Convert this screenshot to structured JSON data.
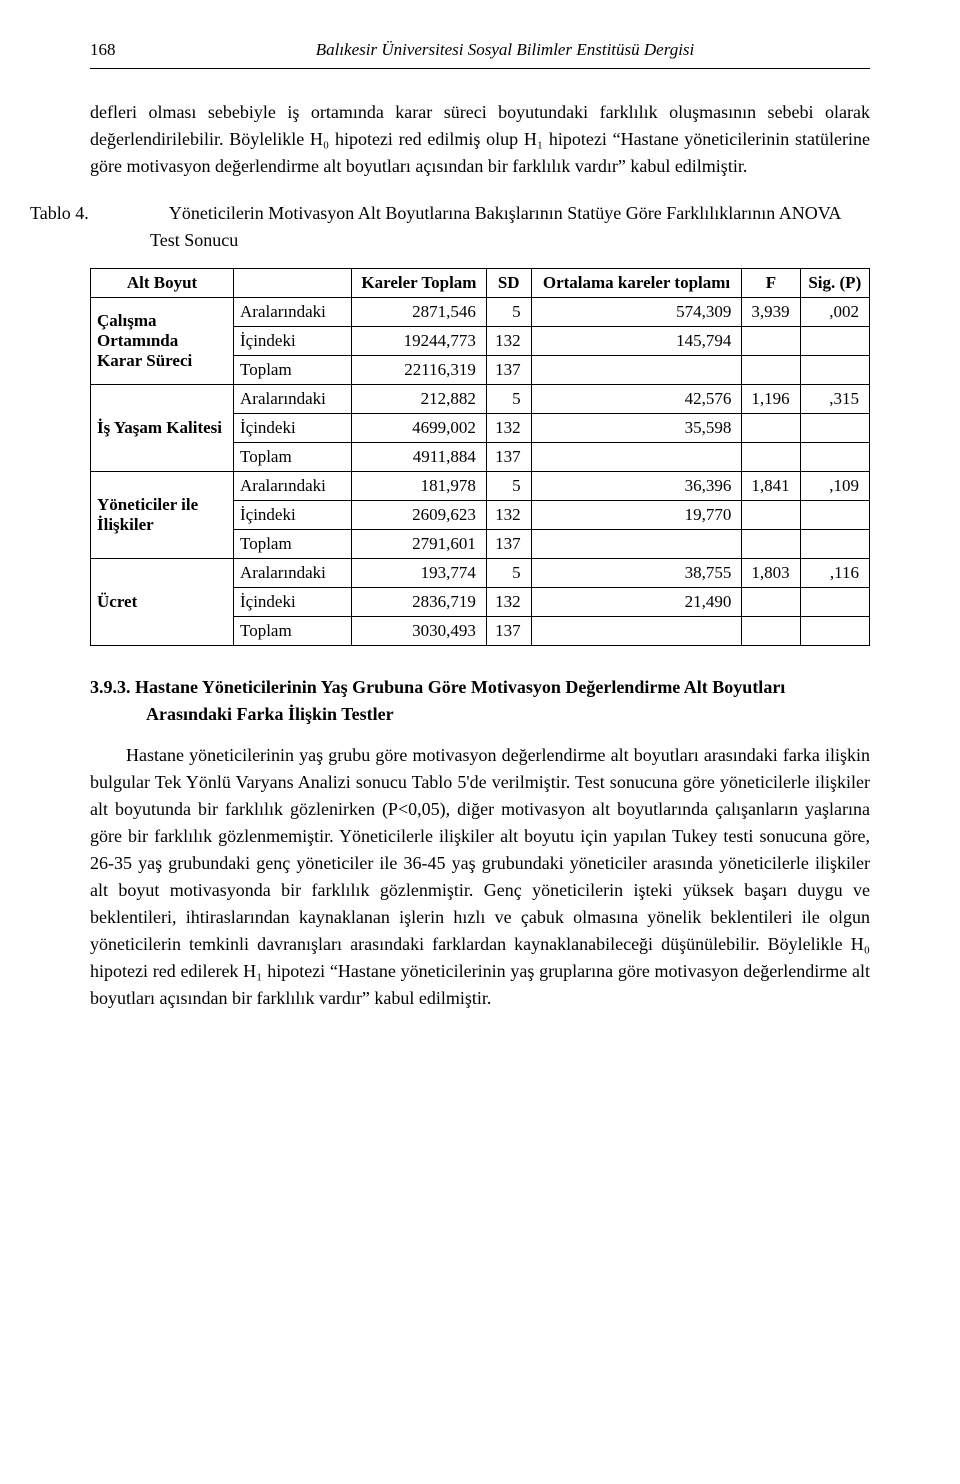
{
  "header": {
    "page_number": "168",
    "running_title": "Balıkesir Üniversitesi Sosyal Bilimler Enstitüsü Dergisi"
  },
  "para1": "defleri olması sebebiyle iş ortamında karar süreci boyutundaki farklılık oluşmasının sebebi olarak değerlendirilebilir. Böylelikle H₀ hipotezi red edilmiş olup H₁ hipotezi “Hastane yöneticilerinin statülerine göre motivasyon değerlendirme alt boyutları açısından bir farklılık vardır” kabul edilmiştir.",
  "table_caption": {
    "label": "Tablo 4.",
    "text": "Yöneticilerin Motivasyon Alt Boyutlarına Bakışlarının Statüye Göre Farklılıklarının ANOVA Test Sonucu"
  },
  "table": {
    "columns": {
      "alt_boyut": "Alt Boyut",
      "kareler_toplam": "Kareler Toplam",
      "sd": "SD",
      "ort_kareler": "Ortalama kareler toplamı",
      "f": "F",
      "sig": "Sig. (P)"
    },
    "groups": [
      {
        "name": "Çalışma Ortamında Karar Süreci",
        "rows": [
          {
            "src": "Aralarındaki",
            "kt": "2871,546",
            "sd": "5",
            "okt": "574,309",
            "f": "3,939",
            "p": ",002"
          },
          {
            "src": "İçindeki",
            "kt": "19244,773",
            "sd": "132",
            "okt": "145,794",
            "f": "",
            "p": ""
          },
          {
            "src": "Toplam",
            "kt": "22116,319",
            "sd": "137",
            "okt": "",
            "f": "",
            "p": ""
          }
        ]
      },
      {
        "name": "İş Yaşam Kalitesi",
        "rows": [
          {
            "src": "Aralarındaki",
            "kt": "212,882",
            "sd": "5",
            "okt": "42,576",
            "f": "1,196",
            "p": ",315"
          },
          {
            "src": "İçindeki",
            "kt": "4699,002",
            "sd": "132",
            "okt": "35,598",
            "f": "",
            "p": ""
          },
          {
            "src": "Toplam",
            "kt": "4911,884",
            "sd": "137",
            "okt": "",
            "f": "",
            "p": ""
          }
        ]
      },
      {
        "name": "Yöneticiler ile İlişkiler",
        "rows": [
          {
            "src": "Aralarındaki",
            "kt": "181,978",
            "sd": "5",
            "okt": "36,396",
            "f": "1,841",
            "p": ",109"
          },
          {
            "src": "İçindeki",
            "kt": "2609,623",
            "sd": "132",
            "okt": "19,770",
            "f": "",
            "p": ""
          },
          {
            "src": "Toplam",
            "kt": "2791,601",
            "sd": "137",
            "okt": "",
            "f": "",
            "p": ""
          }
        ]
      },
      {
        "name": "Ücret",
        "rows": [
          {
            "src": "Aralarındaki",
            "kt": "193,774",
            "sd": "5",
            "okt": "38,755",
            "f": "1,803",
            "p": ",116"
          },
          {
            "src": "İçindeki",
            "kt": "2836,719",
            "sd": "132",
            "okt": "21,490",
            "f": "",
            "p": ""
          },
          {
            "src": "Toplam",
            "kt": "3030,493",
            "sd": "137",
            "okt": "",
            "f": "",
            "p": ""
          }
        ]
      }
    ]
  },
  "section_heading": {
    "number": "3.9.3.",
    "title": "Hastane Yöneticilerinin Yaş Grubuna Göre Motivasyon Değerlendirme Alt Boyutları Arasındaki Farka İlişkin Testler"
  },
  "para2": "Hastane yöneticilerinin yaş grubu göre motivasyon değerlendirme alt boyutları arasındaki farka ilişkin bulgular Tek Yönlü Varyans Analizi sonucu Tablo 5'de verilmiştir. Test sonucuna göre yöneticilerle ilişkiler alt boyutunda bir farklılık gözlenirken (P<0,05), diğer motivasyon alt boyutlarında çalışanların yaşlarına göre bir farklılık gözlenmemiştir. Yöneticilerle ilişkiler alt boyutu için yapılan Tukey testi sonucuna göre, 26-35 yaş grubundaki genç yöneticiler ile 36-45 yaş grubundaki yöneticiler arasında yöneticilerle ilişkiler alt boyut motivasyonda bir farklılık gözlenmiştir. Genç yöneticilerin işteki yüksek başarı duygu ve beklentileri, ihtiraslarından kaynaklanan işlerin hızlı ve çabuk olmasına yönelik beklentileri ile olgun yöneticilerin temkinli davranışları arasındaki farklardan kaynaklanabileceği düşünülebilir. Böylelikle H₀ hipotezi red edilerek H₁ hipotezi “Hastane yöneticilerinin yaş gruplarına göre motivasyon değerlendirme alt boyutları açısından bir farklılık vardır” kabul edilmiştir."
}
